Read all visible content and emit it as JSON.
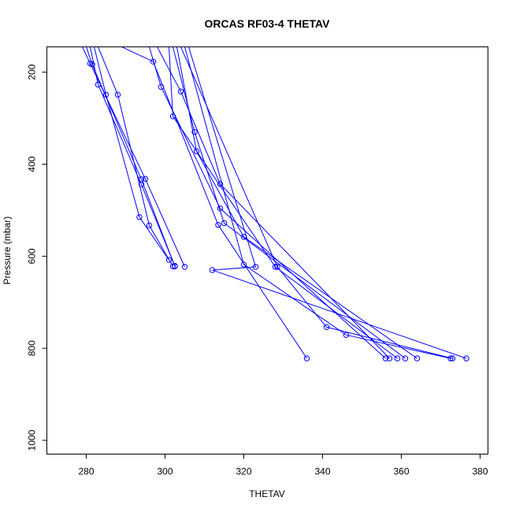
{
  "chart_data": {
    "type": "line",
    "title": "ORCAS RF03-4 THETAV",
    "xlabel": "THETAV",
    "ylabel": "Pressure (mbar)",
    "xlim": [
      270,
      382
    ],
    "ylim": [
      1030,
      145
    ],
    "y_reversed": true,
    "xticks": [
      280,
      300,
      320,
      340,
      360,
      380
    ],
    "yticks": [
      200,
      400,
      600,
      800,
      1000
    ],
    "grid": false,
    "legend": "none",
    "line_color": "#0000ff",
    "marker": "open-circle",
    "series": [
      {
        "values": [
          [
            279,
            145
          ],
          [
            281,
            181
          ],
          [
            295,
            432
          ],
          [
            305,
            623
          ]
        ]
      },
      {
        "values": [
          [
            280,
            145
          ],
          [
            281.5,
            183
          ],
          [
            294,
            433
          ],
          [
            302.5,
            622
          ]
        ]
      },
      {
        "values": [
          [
            281,
            145
          ],
          [
            283,
            227
          ],
          [
            294,
            444
          ],
          [
            302.5,
            621
          ]
        ]
      },
      {
        "values": [
          [
            282,
            145
          ],
          [
            285,
            249
          ],
          [
            293.5,
            515
          ],
          [
            301,
            608
          ]
        ]
      },
      {
        "values": [
          [
            283,
            145
          ],
          [
            288,
            249
          ],
          [
            296,
            533
          ],
          [
            302,
            622
          ]
        ]
      },
      {
        "values": [
          [
            289,
            145
          ],
          [
            297,
            177
          ],
          [
            313.5,
            532
          ],
          [
            336,
            822
          ]
        ]
      },
      {
        "values": [
          [
            296,
            145
          ],
          [
            299,
            232
          ],
          [
            314,
            496
          ],
          [
            356,
            822
          ]
        ]
      },
      {
        "values": [
          [
            298,
            145
          ],
          [
            304,
            242
          ],
          [
            314,
            443
          ],
          [
            357,
            822
          ]
        ]
      },
      {
        "values": [
          [
            301,
            145
          ],
          [
            302,
            296
          ],
          [
            328,
            623
          ],
          [
            359,
            822
          ]
        ]
      },
      {
        "values": [
          [
            302,
            145
          ],
          [
            307.5,
            330
          ],
          [
            315,
            528
          ],
          [
            361,
            822
          ]
        ]
      },
      {
        "values": [
          [
            303,
            145
          ],
          [
            308,
            372
          ],
          [
            320,
            558
          ],
          [
            364,
            822
          ]
        ]
      },
      {
        "values": [
          [
            304,
            145
          ],
          [
            328.5,
            623
          ],
          [
            341,
            754
          ],
          [
            373,
            822
          ]
        ]
      },
      {
        "values": [
          [
            305,
            145
          ],
          [
            320,
            618
          ],
          [
            346,
            771
          ],
          [
            372.5,
            822
          ]
        ]
      },
      {
        "values": [
          [
            306,
            145
          ],
          [
            323,
            623
          ],
          [
            312,
            630
          ],
          [
            376.5,
            822
          ]
        ]
      }
    ]
  }
}
